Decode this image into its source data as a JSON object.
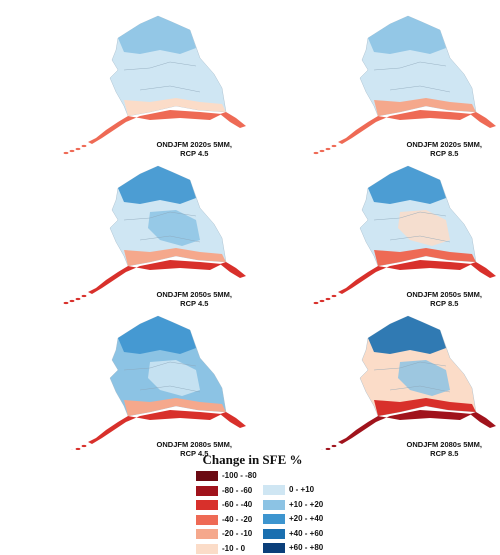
{
  "panels": [
    {
      "line1": "ONDJFM 2020s 5MM,",
      "line2": "RCP 4.5",
      "scenario": "2020s-rcp45"
    },
    {
      "line1": "ONDJFM 2020s 5MM,",
      "line2": "RCP 8.5",
      "scenario": "2020s-rcp85"
    },
    {
      "line1": "ONDJFM 2050s 5MM,",
      "line2": "RCP 4.5",
      "scenario": "2050s-rcp45"
    },
    {
      "line1": "ONDJFM 2050s 5MM,",
      "line2": "RCP 8.5",
      "scenario": "2050s-rcp85"
    },
    {
      "line1": "ONDJFM 2080s 5MM,",
      "line2": "RCP 4.5",
      "scenario": "2080s-rcp45"
    },
    {
      "line1": "ONDJFM 2080s 5MM,",
      "line2": "RCP 8.5",
      "scenario": "2080s-rcp85"
    }
  ],
  "legend": {
    "title": "Change in SFE %",
    "negative": [
      {
        "label": "-100 - -80",
        "color": "#6b0a12"
      },
      {
        "label": "-80 - -60",
        "color": "#a0131c"
      },
      {
        "label": "-60 - -40",
        "color": "#d8302b"
      },
      {
        "label": "-40 - -20",
        "color": "#ee6a55"
      },
      {
        "label": "-20 - -10",
        "color": "#f5a88c"
      },
      {
        "label": "-10 - 0",
        "color": "#fbdcc8"
      }
    ],
    "positive": [
      {
        "label": "0 - +10",
        "color": "#cfe6f3"
      },
      {
        "label": "+10 - +20",
        "color": "#8cc3e4"
      },
      {
        "label": "+20 - +40",
        "color": "#3d95cf"
      },
      {
        "label": "+40 - +60",
        "color": "#1a6fb0"
      },
      {
        "label": "+60 - +80",
        "color": "#0b3f7a"
      }
    ]
  }
}
